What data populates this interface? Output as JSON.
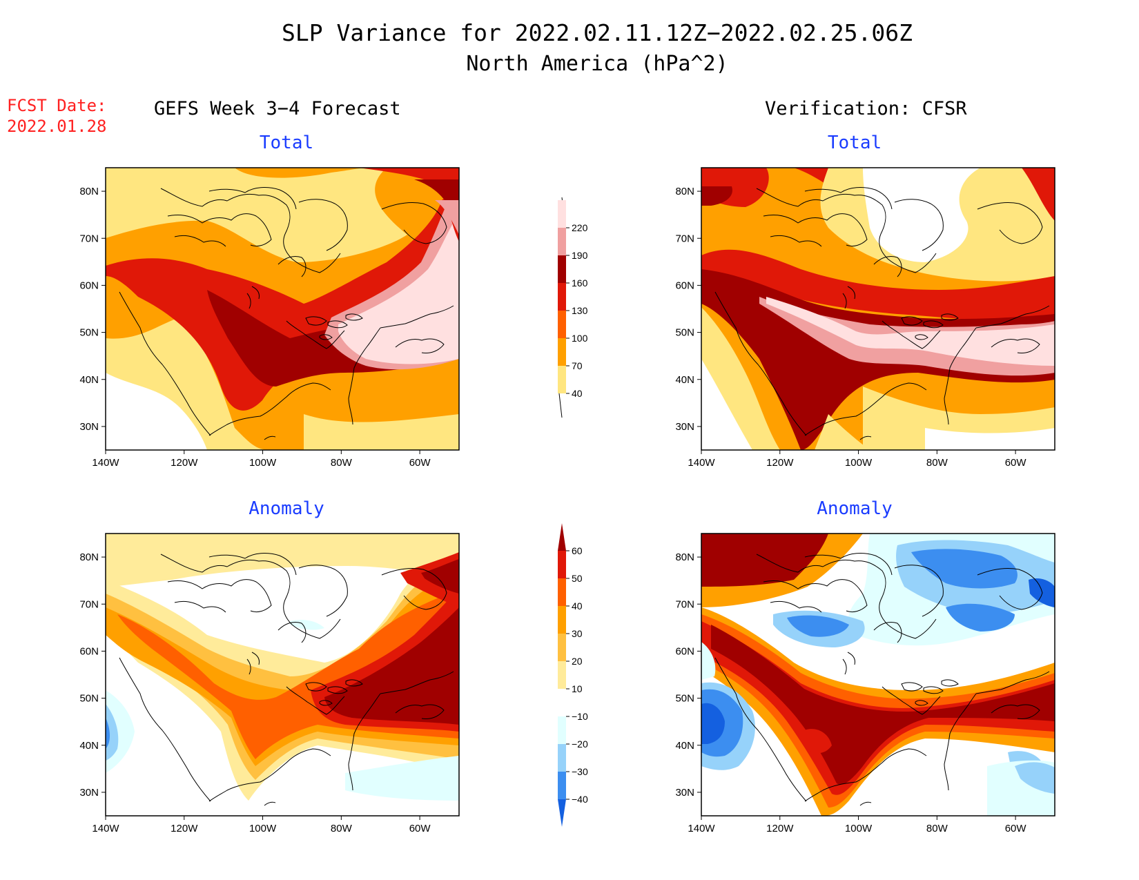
{
  "title": {
    "line1": "SLP Variance for 2022.02.11.12Z−2022.02.25.06Z",
    "line2": "North America (hPa^2)"
  },
  "fcst_date": {
    "label": "FCST Date:",
    "value": "2022.01.28"
  },
  "columns": {
    "left": "GEFS Week 3−4 Forecast",
    "right": "Verification: CFSR"
  },
  "panels": {
    "top_left": "Total",
    "top_right": "Total",
    "bottom_left": "Anomaly",
    "bottom_right": "Anomaly"
  },
  "axes": {
    "lat_labels": [
      "80N",
      "70N",
      "60N",
      "50N",
      "40N",
      "30N"
    ],
    "lon_labels": [
      "140W",
      "120W",
      "100W",
      "80W",
      "60W"
    ],
    "lat_range": [
      25,
      85
    ],
    "lon_range": [
      -140,
      -50
    ]
  },
  "colorbars": {
    "total": {
      "levels": [
        "40",
        "70",
        "100",
        "130",
        "160",
        "190",
        "220"
      ],
      "colors": [
        "#ffe680",
        "#ffa000",
        "#ff6000",
        "#e01808",
        "#a00000",
        "#f0a0a0",
        "#ffe0e0"
      ]
    },
    "anomaly": {
      "levels": [
        "−40",
        "−30",
        "−20",
        "−10",
        "10",
        "20",
        "30",
        "40",
        "50",
        "60"
      ],
      "colors": [
        "#1460e0",
        "#3c8ef0",
        "#96d2fa",
        "#e1ffff",
        "#ffffff",
        "#ffeb9a",
        "#ffc040",
        "#ffa000",
        "#ff6000",
        "#e01808",
        "#a00000"
      ]
    }
  },
  "map_colors": {
    "white": "#ffffff",
    "yellow": "#ffe680",
    "orange_light": "#ffa000",
    "orange": "#ff6000",
    "red": "#e01808",
    "dark_red": "#a00000",
    "pink": "#f0a0a0",
    "light_pink": "#ffe0e0",
    "cyan_light": "#e1ffff",
    "blue_light": "#96d2fa",
    "blue": "#3c8ef0",
    "blue_dark": "#1460e0"
  }
}
